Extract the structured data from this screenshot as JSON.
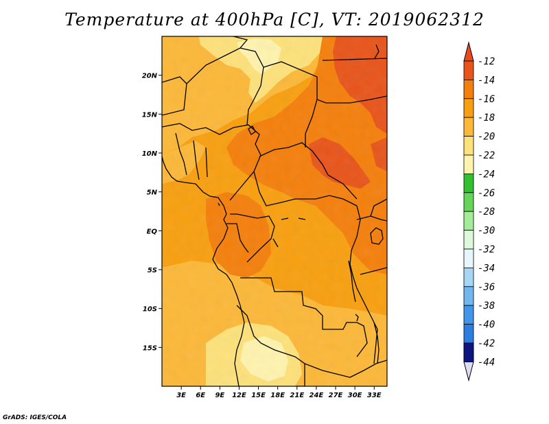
{
  "title": "Temperature at 400hPa [C], VT: 2019062312",
  "credit": "GrADS: IGES/COLA",
  "map": {
    "lon_range": [
      0,
      35
    ],
    "lat_range": [
      -20,
      25
    ],
    "lon_ticks": [
      {
        "value": 3,
        "label": "3E"
      },
      {
        "value": 6,
        "label": "6E"
      },
      {
        "value": 9,
        "label": "9E"
      },
      {
        "value": 12,
        "label": "12E"
      },
      {
        "value": 15,
        "label": "15E"
      },
      {
        "value": 18,
        "label": "18E"
      },
      {
        "value": 21,
        "label": "21E"
      },
      {
        "value": 24,
        "label": "24E"
      },
      {
        "value": 27,
        "label": "27E"
      },
      {
        "value": 30,
        "label": "30E"
      },
      {
        "value": 33,
        "label": "33E"
      }
    ],
    "lat_ticks": [
      {
        "value": 20,
        "label": "20N"
      },
      {
        "value": 15,
        "label": "15N"
      },
      {
        "value": 10,
        "label": "10N"
      },
      {
        "value": 5,
        "label": "5N"
      },
      {
        "value": 0,
        "label": "EQ"
      },
      {
        "value": -5,
        "label": "5S"
      },
      {
        "value": -10,
        "label": "10S"
      },
      {
        "value": -15,
        "label": "15S"
      }
    ]
  },
  "colorbar": {
    "levels": [
      {
        "label": "-12",
        "color": "#e8541a"
      },
      {
        "label": "-14",
        "color": "#f47f0b"
      },
      {
        "label": "-16",
        "color": "#f89f0f"
      },
      {
        "label": "-18",
        "color": "#fcb838"
      },
      {
        "label": "-20",
        "color": "#fde17a"
      },
      {
        "label": "-22",
        "color": "#fff3ae"
      },
      {
        "label": "-24",
        "color": "#31c030"
      },
      {
        "label": "-26",
        "color": "#63d65a"
      },
      {
        "label": "-28",
        "color": "#a3ec98"
      },
      {
        "label": "-30",
        "color": "#ddf8da"
      },
      {
        "label": "-32",
        "color": "#e6f6fb"
      },
      {
        "label": "-34",
        "color": "#a7d5f4"
      },
      {
        "label": "-36",
        "color": "#72b6ef"
      },
      {
        "label": "-38",
        "color": "#4196ec"
      },
      {
        "label": "-40",
        "color": "#2d7ee2"
      },
      {
        "label": "-42",
        "color": "#1c5fd0"
      },
      {
        "label": "-44",
        "color": "#1247b4"
      }
    ],
    "top_tip_color": "#ea4a1e",
    "bottom_segment_color": "#0d1580",
    "bottom_tip_color": "#dcdcf4"
  }
}
